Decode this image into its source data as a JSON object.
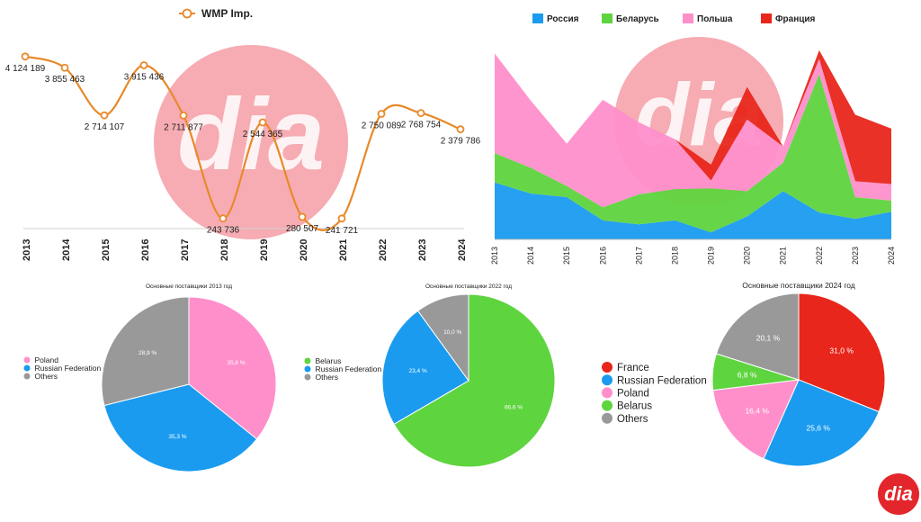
{
  "colors": {
    "line": "#E8892A",
    "russia": "#1A9BEF",
    "belarus": "#5ED43E",
    "poland": "#FF8FCB",
    "france": "#E8261B",
    "others": "#999999",
    "watermark": "#EE5A66",
    "logo": "#E3262C"
  },
  "logo_text": "dia",
  "charts": [
    {
      "type": "line",
      "legend": [
        {
          "label": "WMP Imp."
        }
      ],
      "x": [
        "2013",
        "2014",
        "2015",
        "2016",
        "2017",
        "2018",
        "2019",
        "2020",
        "2021",
        "2022",
        "2023",
        "2024"
      ],
      "series": [
        {
          "name": "WMP Imp.",
          "values": [
            4124189,
            3855463,
            2714107,
            3915436,
            2711877,
            243736,
            2544365,
            280507,
            241721,
            2750089,
            2768754,
            2379786
          ]
        }
      ],
      "labels": [
        "4 124 189",
        "3 855 463",
        "2 714 107",
        "3 915 436",
        "2 711 877",
        "243 736",
        "2 544 365",
        "280 507",
        "241 721",
        "2 750 089",
        "2 768 754",
        "2 379 786"
      ],
      "ylim": [
        0,
        4400000
      ],
      "grid": false
    },
    {
      "type": "area",
      "stacked": true,
      "x": [
        "2013",
        "2014",
        "2015",
        "2016",
        "2017",
        "2018",
        "2019",
        "2020",
        "2021",
        "2022",
        "2023",
        "2024"
      ],
      "legend": [
        {
          "key": "russia",
          "label": "Россия"
        },
        {
          "key": "belarus",
          "label": "Беларусь"
        },
        {
          "key": "poland",
          "label": "Польша"
        },
        {
          "key": "france",
          "label": "Франция"
        }
      ],
      "series": [
        {
          "name": "Россия",
          "key": "russia",
          "values": [
            1.44,
            1.16,
            1.07,
            0.48,
            0.38,
            0.48,
            0.18,
            0.58,
            1.22,
            0.68,
            0.52,
            0.7
          ]
        },
        {
          "name": "Беларусь",
          "key": "belarus",
          "values": [
            0.74,
            0.65,
            0.28,
            0.33,
            0.76,
            0.79,
            1.11,
            0.64,
            0.72,
            3.5,
            0.55,
            0.28
          ]
        },
        {
          "name": "Польша",
          "key": "poland",
          "values": [
            2.52,
            1.7,
            1.07,
            2.72,
            1.82,
            1.26,
            0.2,
            1.81,
            0.41,
            0.38,
            0.4,
            0.42
          ]
        },
        {
          "name": "Франция",
          "key": "france",
          "values": [
            0,
            0,
            0,
            0,
            0,
            0,
            0.4,
            0.82,
            0,
            0.22,
            1.68,
            1.4
          ]
        }
      ],
      "ylim": [
        0,
        4.8
      ],
      "legend_position": "top"
    },
    {
      "type": "pie",
      "title": "Основные поставщики 2013 год",
      "slices": [
        {
          "label": "Poland",
          "key": "poland",
          "value": 35.8,
          "text": "35,8 %"
        },
        {
          "label": "Russian Federation",
          "key": "russia",
          "value": 35.3,
          "text": "35,3 %"
        },
        {
          "label": "Others",
          "key": "others",
          "value": 28.9,
          "text": "28,9 %"
        }
      ],
      "legend_position": "left"
    },
    {
      "type": "pie",
      "title": "Основные поставщики 2022 год",
      "slices": [
        {
          "label": "Belarus",
          "key": "belarus",
          "value": 66.6,
          "text": "66,6 %"
        },
        {
          "label": "Russian Federation",
          "key": "russia",
          "value": 23.4,
          "text": "23,4 %"
        },
        {
          "label": "Others",
          "key": "others",
          "value": 10.0,
          "text": "10,0 %"
        }
      ],
      "legend_position": "left"
    },
    {
      "type": "pie",
      "title": "Основные поставщики 2024 год",
      "slices": [
        {
          "label": "France",
          "key": "france",
          "value": 31.0,
          "text": "31,0 %"
        },
        {
          "label": "Russian Federation",
          "key": "russia",
          "value": 25.6,
          "text": "25,6 %"
        },
        {
          "label": "Poland",
          "key": "poland",
          "value": 16.4,
          "text": "16,4 %"
        },
        {
          "label": "Belarus",
          "key": "belarus",
          "value": 6.8,
          "text": "6,8 %"
        },
        {
          "label": "Others",
          "key": "others",
          "value": 20.1,
          "text": "20,1 %"
        }
      ],
      "legend_position": "left"
    }
  ]
}
